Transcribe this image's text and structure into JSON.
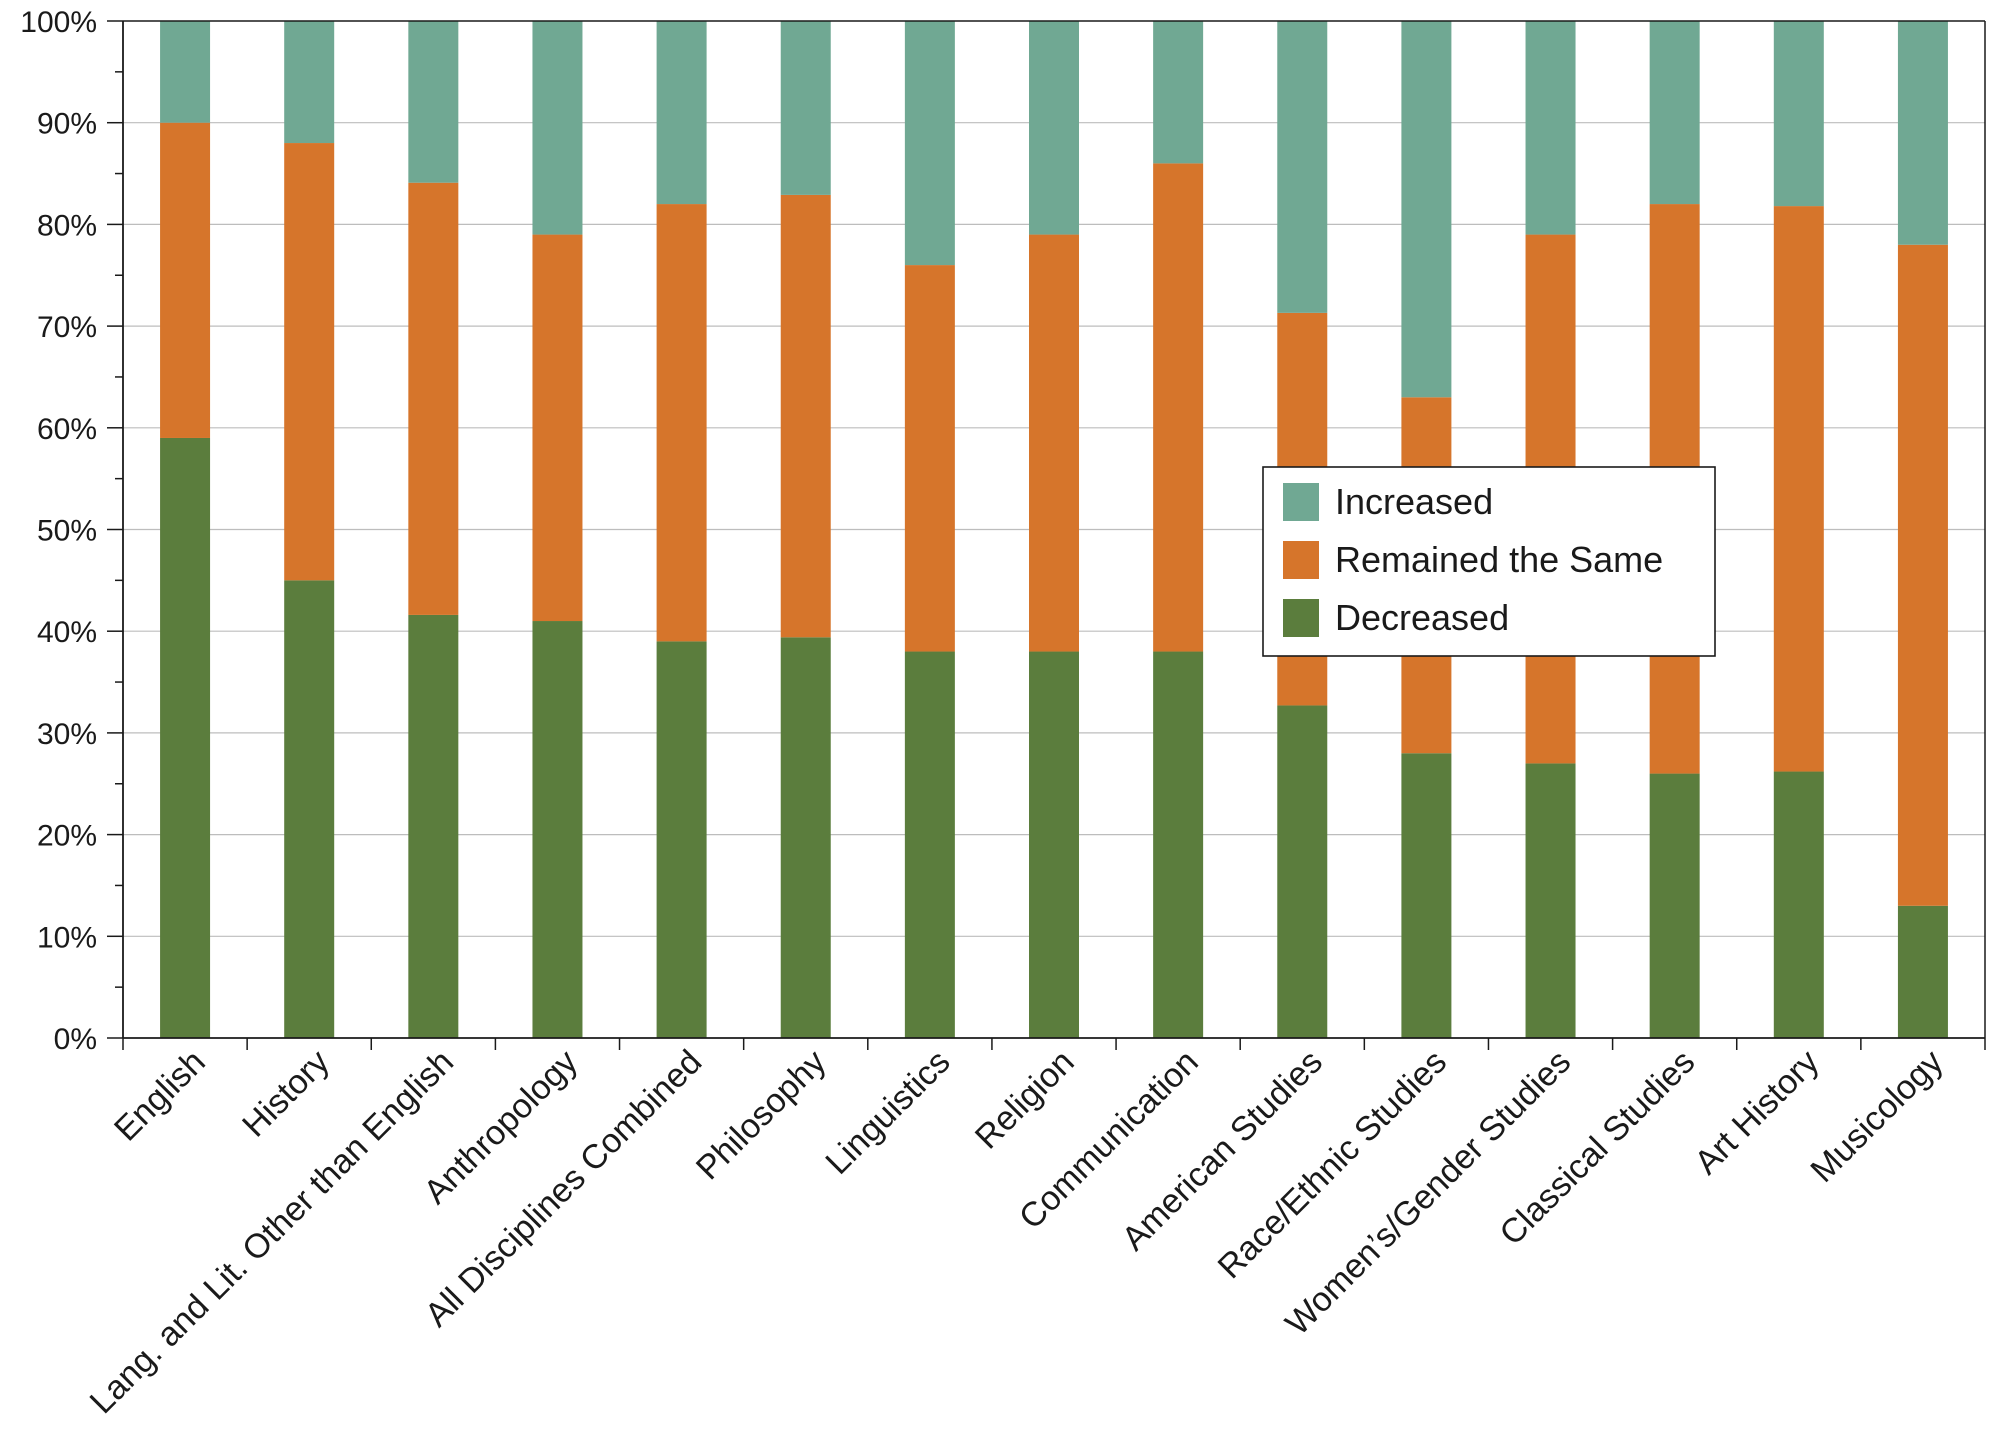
{
  "chart_data": {
    "type": "bar",
    "stacked": true,
    "percent": true,
    "categories": [
      "English",
      "History",
      "Lang. and Lit. Other than English",
      "Anthropology",
      "All Disciplines Combined",
      "Philosophy",
      "Linguistics",
      "Religion",
      "Communication",
      "American Studies",
      "Race/Ethnic Studies",
      "Women’s/Gender Studies",
      "Classical Studies",
      "Art History",
      "Musicology"
    ],
    "series": [
      {
        "name": "Decreased",
        "color": "#5b7d3d",
        "values": [
          59,
          45,
          41.6,
          41,
          39,
          39.4,
          38,
          38,
          38,
          32.7,
          28,
          27,
          26,
          26.2,
          13
        ]
      },
      {
        "name": "Remained the Same",
        "color": "#d6752b",
        "values": [
          31,
          43,
          42.5,
          38,
          43,
          43.5,
          38,
          41,
          48,
          38.6,
          35,
          52,
          56,
          55.6,
          65
        ]
      },
      {
        "name": "Increased",
        "color": "#70a893",
        "values": [
          10,
          12,
          15.9,
          21,
          18,
          17.1,
          24,
          21,
          14,
          28.7,
          37,
          21,
          18,
          18.2,
          22
        ]
      }
    ],
    "legend_order": [
      "Increased",
      "Remained the Same",
      "Decreased"
    ],
    "y_ticks": [
      "0%",
      "10%",
      "20%",
      "30%",
      "40%",
      "50%",
      "60%",
      "70%",
      "80%",
      "90%",
      "100%"
    ],
    "ylim": [
      0,
      100
    ],
    "grid": true,
    "legend_position": "center-right",
    "title": "",
    "xlabel": "",
    "ylabel": ""
  }
}
